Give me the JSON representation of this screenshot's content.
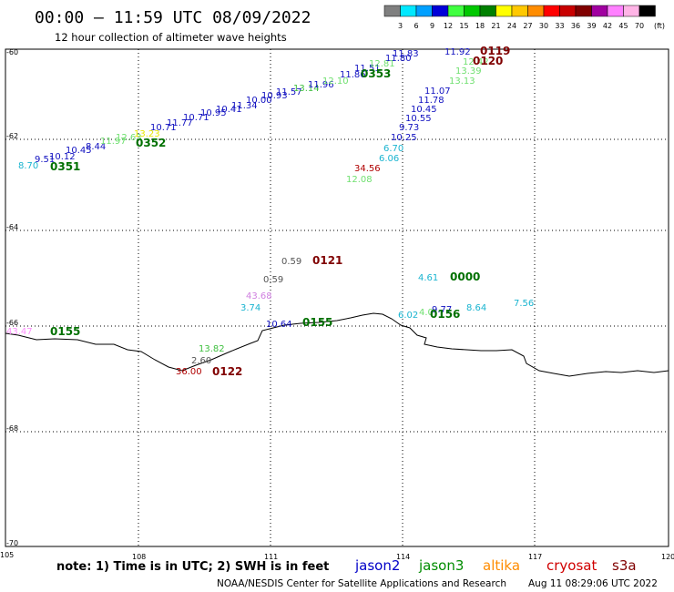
{
  "header": {
    "title": "00:00 – 11:59 UTC 08/09/2022",
    "subtitle": "12 hour collection of altimeter wave heights"
  },
  "color_scale": {
    "unit": "(ft)",
    "labels": [
      "3",
      "6",
      "9",
      "12",
      "15",
      "18",
      "21",
      "24",
      "27",
      "30",
      "33",
      "36",
      "39",
      "42",
      "45",
      "70"
    ],
    "colors": [
      "#7f7f7f",
      "#00e8ff",
      "#00a0ff",
      "#0000d8",
      "#40ff40",
      "#00c800",
      "#008000",
      "#ffff00",
      "#ffc800",
      "#ff8c00",
      "#ff0000",
      "#c80000",
      "#800000",
      "#a000a0",
      "#ff80ff",
      "#ffb4e6",
      "#000000"
    ]
  },
  "axes": {
    "lon_labels": [
      "105",
      "108",
      "111",
      "114",
      "117",
      "120"
    ],
    "lat_labels": [
      "-60",
      "-62",
      "-64",
      "-66",
      "-68",
      "-70"
    ]
  },
  "wave_labels": [
    {
      "text": "8.70",
      "color": "#19b4d0"
    },
    {
      "text": "9.51",
      "color": "#1010c0"
    },
    {
      "text": "10.12",
      "color": "#1010c0"
    },
    {
      "text": "10.45",
      "color": "#1010c0"
    },
    {
      "text": "8.44",
      "color": "#1010c0"
    },
    {
      "text": "11.97",
      "color": "#70e070"
    },
    {
      "text": "12.63",
      "color": "#70e070"
    },
    {
      "text": "13.23",
      "color": "#e8e800"
    },
    {
      "text": "10.71",
      "color": "#1010c0"
    },
    {
      "text": "11.77",
      "color": "#1010c0"
    },
    {
      "text": "10.71",
      "color": "#1010c0"
    },
    {
      "text": "10.95",
      "color": "#1010c0"
    },
    {
      "text": "10.41",
      "color": "#1010c0"
    },
    {
      "text": "11.34",
      "color": "#1010c0"
    },
    {
      "text": "10.00",
      "color": "#1010c0"
    },
    {
      "text": "10.93",
      "color": "#1010c0"
    },
    {
      "text": "11.57",
      "color": "#1010c0"
    },
    {
      "text": "13.14",
      "color": "#40c040"
    },
    {
      "text": "11.96",
      "color": "#1010c0"
    },
    {
      "text": "12.10",
      "color": "#70e070"
    },
    {
      "text": "11.86",
      "color": "#1010c0"
    },
    {
      "text": "11.51",
      "color": "#1010c0"
    },
    {
      "text": "12.81",
      "color": "#70e070"
    },
    {
      "text": "11.80",
      "color": "#1010c0"
    },
    {
      "text": "11.83",
      "color": "#1010c0"
    },
    {
      "text": "11.92",
      "color": "#1010c0"
    },
    {
      "text": "12.42",
      "color": "#70e070"
    },
    {
      "text": "13.39",
      "color": "#70e070"
    },
    {
      "text": "13.13",
      "color": "#70e070"
    },
    {
      "text": "11.07",
      "color": "#1010c0"
    },
    {
      "text": "11.78",
      "color": "#1010c0"
    },
    {
      "text": "10.45",
      "color": "#1010c0"
    },
    {
      "text": "10.55",
      "color": "#1010c0"
    },
    {
      "text": "9.73",
      "color": "#1010c0"
    },
    {
      "text": "10.25",
      "color": "#1010c0"
    },
    {
      "text": "6.70",
      "color": "#19b4d0"
    },
    {
      "text": "6.06",
      "color": "#19b4d0"
    },
    {
      "text": "34.56",
      "color": "#b00000"
    },
    {
      "text": "12.08",
      "color": "#70e070"
    },
    {
      "text": "0.59",
      "color": "#555555"
    },
    {
      "text": "0.59",
      "color": "#555555"
    },
    {
      "text": "43.68",
      "color": "#d080e0"
    },
    {
      "text": "3.74",
      "color": "#19b4d0"
    },
    {
      "text": "10.64",
      "color": "#1010c0"
    },
    {
      "text": "4.61",
      "color": "#19b4d0"
    },
    {
      "text": "6.02",
      "color": "#19b4d0"
    },
    {
      "text": "4.0",
      "color": "#70e070"
    },
    {
      "text": "9.77",
      "color": "#1010c0"
    },
    {
      "text": "8.64",
      "color": "#19b4d0"
    },
    {
      "text": "7.56",
      "color": "#19b4d0"
    },
    {
      "text": "43.47",
      "color": "#ff90ff"
    },
    {
      "text": "13.82",
      "color": "#40c040"
    },
    {
      "text": "2.60",
      "color": "#555555"
    },
    {
      "text": "36.00",
      "color": "#b00000"
    }
  ],
  "pass_labels": [
    {
      "text": "0351",
      "color": "#007000"
    },
    {
      "text": "0352",
      "color": "#007000"
    },
    {
      "text": "0353",
      "color": "#007000"
    },
    {
      "text": "0119",
      "color": "#800000"
    },
    {
      "text": "0120",
      "color": "#800000"
    },
    {
      "text": "0121",
      "color": "#800000"
    },
    {
      "text": "0000",
      "color": "#007000"
    },
    {
      "text": "0156",
      "color": "#007000"
    },
    {
      "text": "0155",
      "color": "#007000"
    },
    {
      "text": "0155",
      "color": "#007000"
    },
    {
      "text": "0122",
      "color": "#800000"
    }
  ],
  "footer": {
    "note": "note: 1) Time is in UTC; 2) SWH is in feet",
    "satellites": [
      {
        "name": "jason2",
        "color": "#0000c8"
      },
      {
        "name": "jason3",
        "color": "#008c00"
      },
      {
        "name": "altika",
        "color": "#ff8c00"
      },
      {
        "name": "cryosat",
        "color": "#d00000"
      },
      {
        "name": "s3a",
        "color": "#800000"
      }
    ],
    "credit": "NOAA/NESDIS Center for Satellite Applications and Research",
    "timestamp": "Aug 11 08:29:06 UTC 2022"
  }
}
